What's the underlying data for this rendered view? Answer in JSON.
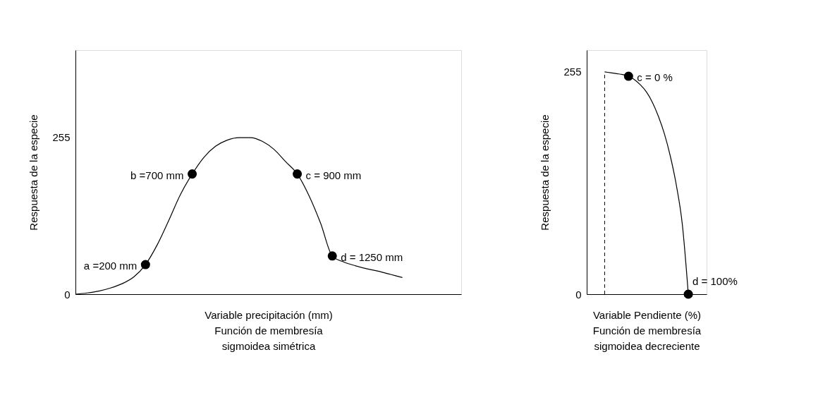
{
  "chart_data": [
    {
      "type": "line",
      "xlabel": "Variable precipitación (mm)",
      "ylabel": "Respuesta de la especie",
      "annotations": [
        "Función de membresía",
        "sigmoidea simétrica",
        "a =200 mm",
        "b =700 mm",
        "c = 900 mm",
        "d = 1250 mm"
      ],
      "categories": [
        null,
        null,
        null,
        null,
        null,
        null,
        null,
        null,
        null,
        null,
        null,
        null,
        null,
        null,
        null,
        null,
        null,
        null,
        null,
        null,
        null,
        null,
        null,
        null,
        null,
        null,
        null,
        null,
        null
      ],
      "ylim": [
        0,
        396
      ],
      "yticks": [
        0,
        255
      ],
      "grid": false,
      "tick_labels": "y",
      "series": [
        {
          "color": "#000000",
          "line_style": "solid",
          "marker": "none",
          "values": [
            0,
            2,
            5,
            10,
            17,
            28,
            48,
            80,
            120,
            162,
            195,
            222,
            240,
            250,
            254,
            254,
            248,
            235,
            215,
            195,
            160,
            115,
            62,
            52,
            46,
            41,
            37,
            32,
            27
          ]
        },
        {
          "type": "scatter",
          "color": "#000000",
          "marker": "circle",
          "values": [
            null,
            null,
            null,
            null,
            null,
            null,
            48,
            null,
            null,
            null,
            195,
            null,
            null,
            null,
            null,
            null,
            null,
            null,
            null,
            195,
            null,
            null,
            62,
            null,
            null,
            null,
            null,
            null,
            null
          ]
        }
      ]
    },
    {
      "type": "line",
      "xlabel": "Variable Pendiente (%)",
      "ylabel": "Respuesta de la especie",
      "annotations": [
        "Función de membresía",
        "sigmoidea decreciente",
        "c = 0 %",
        "d = 100%"
      ],
      "categories": [
        null,
        null,
        null,
        null,
        null,
        null,
        null,
        null,
        null,
        null,
        null,
        null,
        null,
        null,
        null,
        null,
        null,
        null
      ],
      "ylim": [
        0,
        280
      ],
      "yticks": [
        0,
        255
      ],
      "grid": false,
      "tick_labels": "y",
      "series": [
        {
          "color": "#000000",
          "line_style": "solid",
          "marker": "none",
          "values": [
            null,
            null,
            null,
            255,
            254,
            253,
            252,
            250,
            246,
            240,
            232,
            220,
            204,
            184,
            158,
            125,
            80,
            0
          ]
        },
        {
          "type": "scatter",
          "color": "#000000",
          "marker": "circle",
          "values": [
            null,
            null,
            null,
            null,
            null,
            null,
            null,
            250,
            null,
            null,
            null,
            null,
            null,
            null,
            null,
            null,
            null,
            0
          ]
        }
      ]
    }
  ]
}
